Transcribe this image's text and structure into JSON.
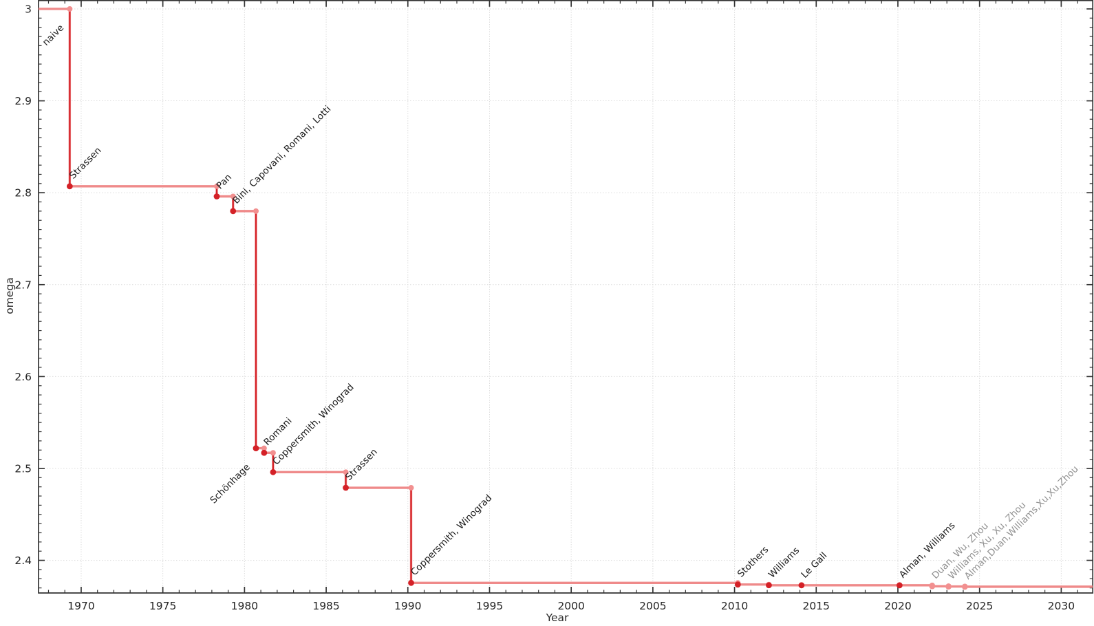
{
  "chart_data": {
    "type": "line",
    "subtype": "step-post",
    "title": "",
    "xlabel": "Year",
    "ylabel": "omega",
    "xlim": [
      1967.39,
      2031.93
    ],
    "ylim": [
      2.3645,
      3.0097
    ],
    "x_major_ticks": [
      1970,
      1975,
      1980,
      1985,
      1990,
      1995,
      2000,
      2005,
      2010,
      2015,
      2020,
      2025,
      2030
    ],
    "x_minor_step_years": 1,
    "y_major_ticks": [
      3.0,
      2.9,
      2.8,
      2.7,
      2.6,
      2.5,
      2.4
    ],
    "y_major_tick_labels": [
      "3",
      "2.9",
      "2.8",
      "2.7",
      "2.6",
      "2.5",
      "2.4"
    ],
    "y_minor_step": 0.01,
    "grid": "major gridlines only, light dotted",
    "legend": "none",
    "initial": {
      "omega": 3.0,
      "label": "naive"
    },
    "points": [
      {
        "year": 1969.3,
        "omega": 2.807,
        "label": "Strassen",
        "muted": false,
        "side": "above"
      },
      {
        "year": 1978.3,
        "omega": 2.796,
        "label": "Pan",
        "muted": false,
        "side": "above"
      },
      {
        "year": 1979.3,
        "omega": 2.78,
        "label": "Bini, Capovani, Romani, Lotti",
        "muted": false,
        "side": "above"
      },
      {
        "year": 1980.7,
        "omega": 2.522,
        "label": "Schönhage",
        "muted": false,
        "side": "below"
      },
      {
        "year": 1981.2,
        "omega": 2.517,
        "label": "Romani",
        "muted": false,
        "side": "above"
      },
      {
        "year": 1981.75,
        "omega": 2.496,
        "label": "Coppersmith, Winograd",
        "muted": false,
        "side": "above"
      },
      {
        "year": 1986.2,
        "omega": 2.479,
        "label": "Strassen",
        "muted": false,
        "side": "above"
      },
      {
        "year": 1990.2,
        "omega": 2.3755,
        "label": "Coppersmith, Winograd",
        "muted": false,
        "side": "above"
      },
      {
        "year": 2010.2,
        "omega": 2.3737,
        "label": "Stothers",
        "muted": false,
        "side": "above"
      },
      {
        "year": 2012.1,
        "omega": 2.3729,
        "label": "Williams",
        "muted": false,
        "side": "above"
      },
      {
        "year": 2014.1,
        "omega": 2.37287,
        "label": "Le Gall",
        "muted": false,
        "side": "above"
      },
      {
        "year": 2020.1,
        "omega": 2.37286,
        "label": "Alman, Williams",
        "muted": false,
        "side": "above"
      },
      {
        "year": 2022.1,
        "omega": 2.37188,
        "label": "Duan, Wu, Zhou",
        "muted": true,
        "side": "above"
      },
      {
        "year": 2023.1,
        "omega": 2.371552,
        "label": "Williams, Xu, Xu, Zhou",
        "muted": true,
        "side": "above"
      },
      {
        "year": 2024.1,
        "omega": 2.371339,
        "label": "Alman,Duan,Williams,Xu,Xu,Zhou",
        "muted": true,
        "side": "above"
      }
    ],
    "end_year": 2031.93,
    "colors": {
      "step_line": "#ef8a8a",
      "drop_line": "#d42127",
      "point_marker": "#d42127",
      "corner_marker": "#f29090",
      "label_text": "#1a1a1a",
      "muted_label_text": "#919191",
      "tick_text": "#262626",
      "spine": "#333333",
      "grid": "#dcdcdc"
    }
  }
}
